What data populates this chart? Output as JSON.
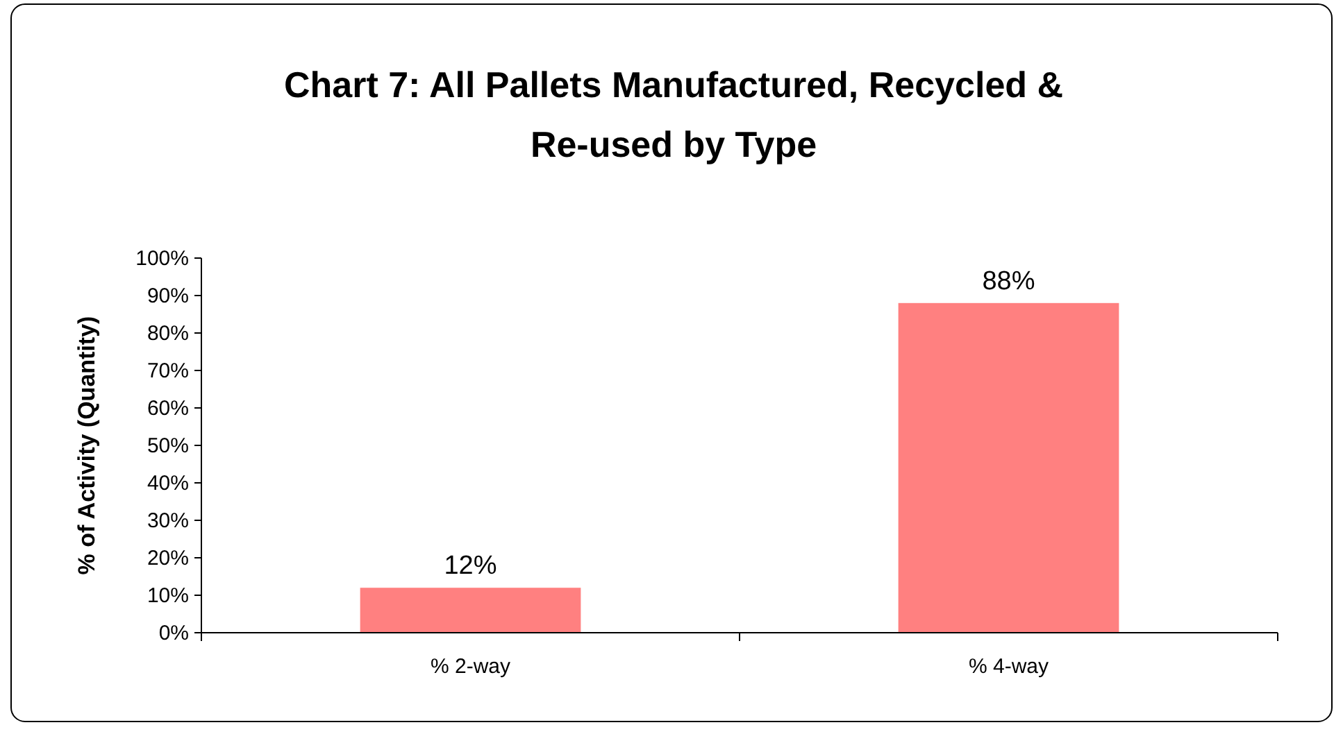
{
  "chart_data": {
    "type": "bar",
    "title": "Chart 7: All Pallets Manufactured, Recycled &\nRe-used by Type",
    "ylabel": "% of Activity (Quantity)",
    "categories": [
      "% 2-way",
      "% 4-way"
    ],
    "values": [
      12,
      88
    ],
    "color": "#ff8080",
    "value_labels": [
      "12%",
      "88%"
    ],
    "ylim": [
      0,
      100
    ],
    "yticks": [
      {
        "value": 0,
        "label": "0%"
      },
      {
        "value": 10,
        "label": "10%"
      },
      {
        "value": 20,
        "label": "20%"
      },
      {
        "value": 30,
        "label": "30%"
      },
      {
        "value": 40,
        "label": "40%"
      },
      {
        "value": 50,
        "label": "50%"
      },
      {
        "value": 60,
        "label": "60%"
      },
      {
        "value": 70,
        "label": "70%"
      },
      {
        "value": 80,
        "label": "80%"
      },
      {
        "value": 90,
        "label": "90%"
      },
      {
        "value": 100,
        "label": "100%"
      }
    ]
  }
}
